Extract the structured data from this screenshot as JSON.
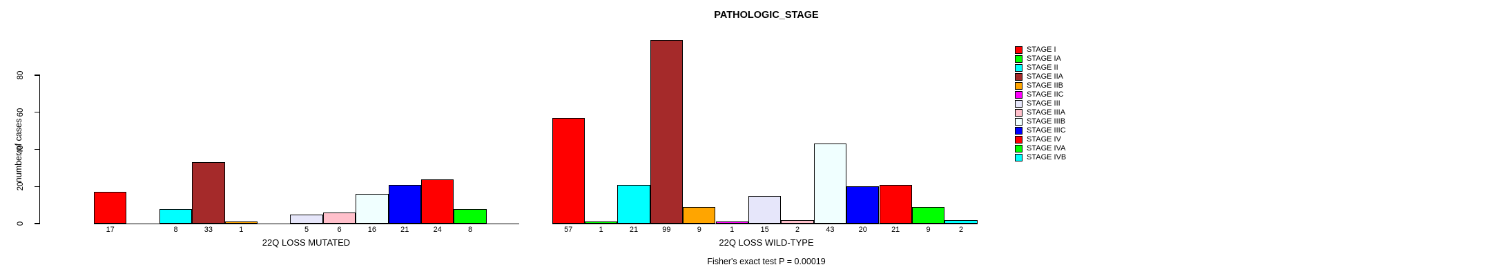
{
  "chart_data": {
    "type": "bar",
    "title": "PATHOLOGIC_STAGE",
    "ylabel": "number of cases",
    "ylim": [
      0,
      80
    ],
    "yticks": [
      0,
      20,
      40,
      60,
      80
    ],
    "grid": false,
    "legend_position": "right",
    "categories": [
      "STAGE I",
      "STAGE IA",
      "STAGE II",
      "STAGE IIA",
      "STAGE IIB",
      "STAGE IIC",
      "STAGE III",
      "STAGE IIIA",
      "STAGE IIIB",
      "STAGE IIIC",
      "STAGE IV",
      "STAGE IVA",
      "STAGE IVB"
    ],
    "legend": [
      {
        "label": "STAGE I",
        "color": "#FF0000"
      },
      {
        "label": "STAGE IA",
        "color": "#00FF00"
      },
      {
        "label": "STAGE II",
        "color": "#00FFFF"
      },
      {
        "label": "STAGE IIA",
        "color": "#A52A2A"
      },
      {
        "label": "STAGE IIB",
        "color": "#FFA500"
      },
      {
        "label": "STAGE IIC",
        "color": "#FF00FF"
      },
      {
        "label": "STAGE III",
        "color": "#E6E6FA"
      },
      {
        "label": "STAGE IIIA",
        "color": "#FFC0CB"
      },
      {
        "label": "STAGE IIIB",
        "color": "#F0FFFF"
      },
      {
        "label": "STAGE IIIC",
        "color": "#0000FF"
      },
      {
        "label": "STAGE IV",
        "color": "#FF0000"
      },
      {
        "label": "STAGE IVA",
        "color": "#00FF00"
      },
      {
        "label": "STAGE IVB",
        "color": "#00FFFF"
      }
    ],
    "series": [
      {
        "name": "22Q LOSS MUTATED",
        "values": [
          17,
          0,
          8,
          33,
          1,
          0,
          5,
          6,
          16,
          21,
          24,
          8,
          0
        ]
      },
      {
        "name": "22Q LOSS WILD-TYPE",
        "values": [
          57,
          1,
          21,
          99,
          9,
          1,
          15,
          2,
          43,
          20,
          21,
          9,
          2
        ]
      }
    ],
    "groups": [
      {
        "label": "22Q LOSS MUTATED"
      },
      {
        "label": "22Q LOSS WILD-TYPE"
      }
    ],
    "footnote": "Fisher's exact test P = 0.00019"
  }
}
